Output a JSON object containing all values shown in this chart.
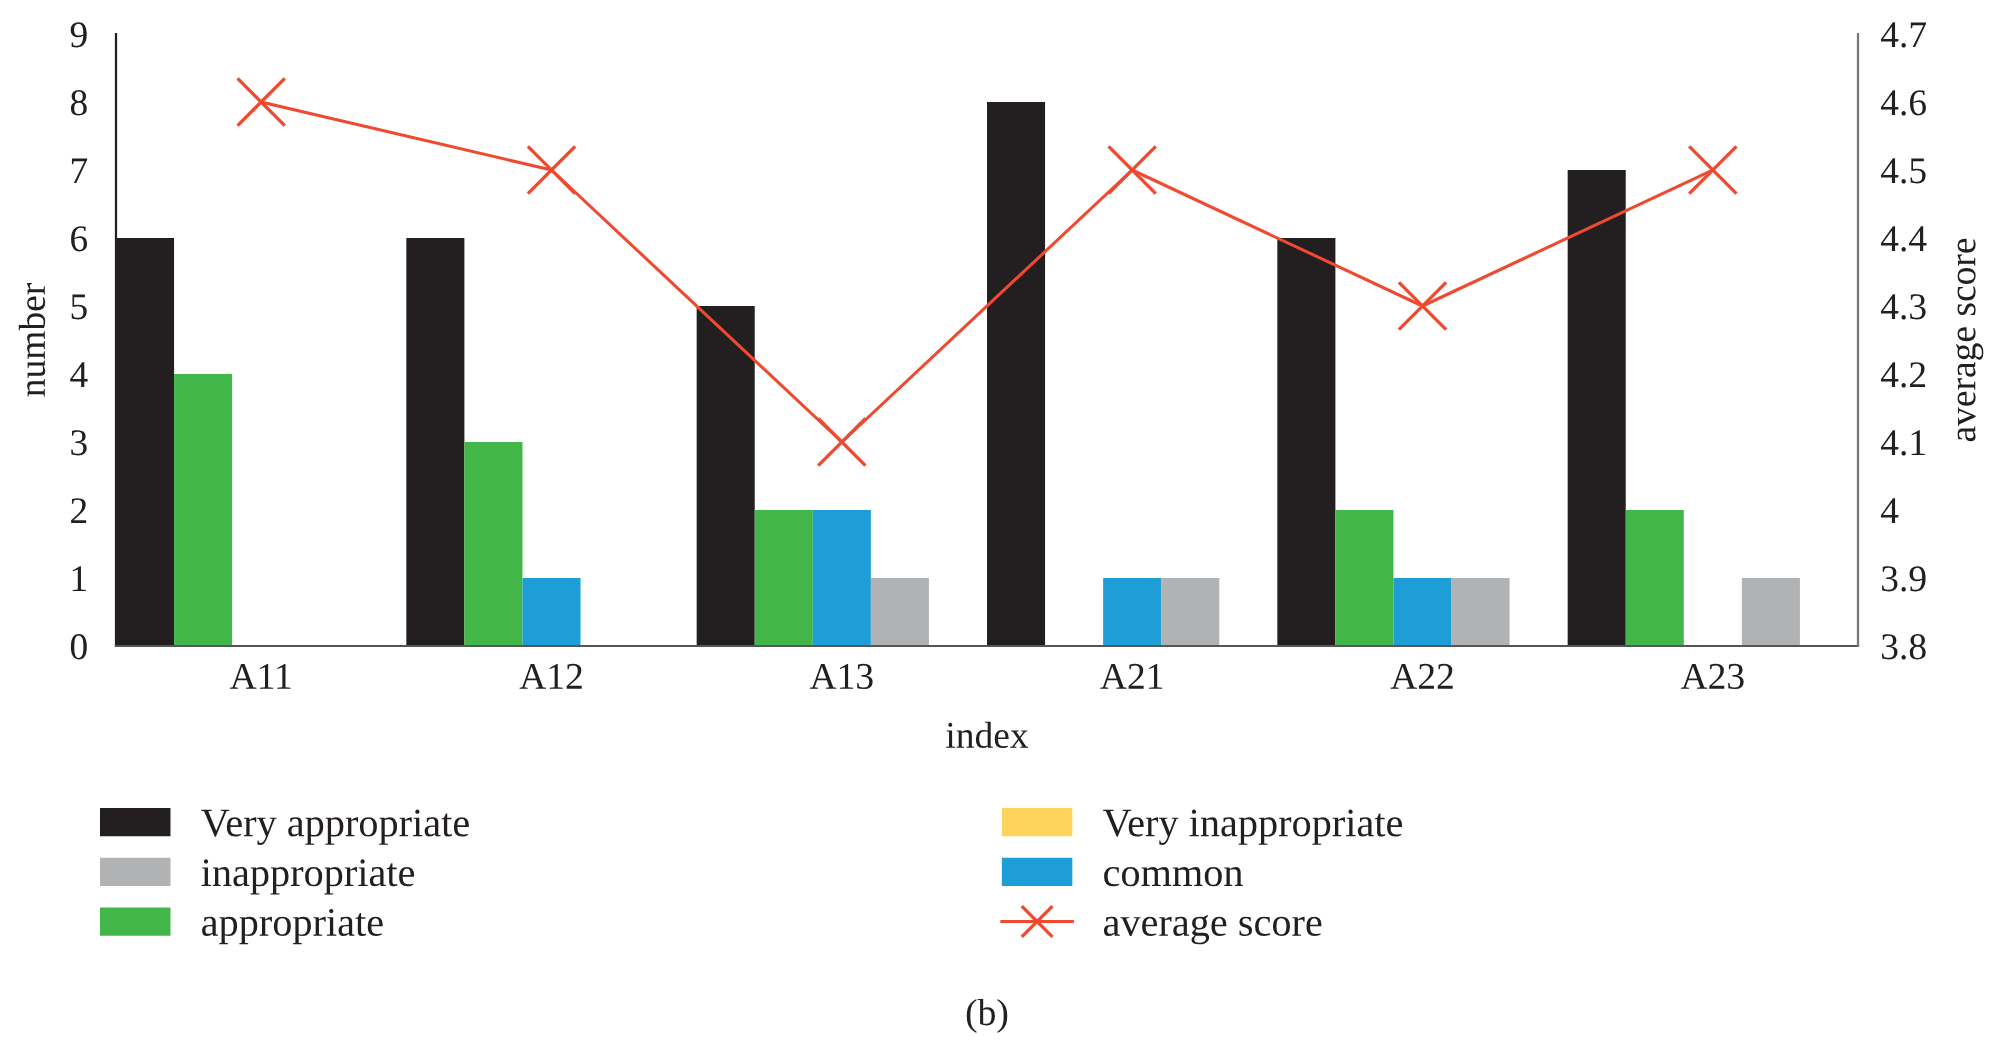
{
  "chart_data": {
    "type": "bar",
    "xlabel": "index",
    "ylabel": "number",
    "y2label": "average score",
    "categories": [
      "A11",
      "A12",
      "A13",
      "A21",
      "A22",
      "A23"
    ],
    "series": [
      {
        "name": "Very appropriate",
        "color": "#231f20",
        "values": [
          6,
          6,
          5,
          8,
          6,
          7
        ]
      },
      {
        "name": "appropriate",
        "color": "#43b649",
        "values": [
          4,
          3,
          2,
          0,
          2,
          2
        ]
      },
      {
        "name": "common",
        "color": "#1d9ed7",
        "values": [
          0,
          1,
          2,
          1,
          1,
          0
        ]
      },
      {
        "name": "inappropriate",
        "color": "#b1b2b4",
        "values": [
          0,
          0,
          1,
          1,
          1,
          1
        ]
      },
      {
        "name": "Very inappropriate",
        "color": "#fdd35b",
        "values": [
          0,
          0,
          0,
          0,
          0,
          0
        ]
      },
      {
        "name": "average score",
        "type": "line",
        "axis": "y2",
        "marker": "cross",
        "line_style": "solid",
        "color": "#ef4a30",
        "values": [
          4.6,
          4.5,
          4.1,
          4.5,
          4.3,
          4.5
        ]
      }
    ],
    "ylim": [
      0,
      9
    ],
    "yticks": [
      0,
      1,
      2,
      3,
      4,
      5,
      6,
      7,
      8,
      9
    ],
    "y2lim": [
      3.8,
      4.7
    ],
    "y2ticks": [
      3.8,
      3.9,
      4,
      4.1,
      4.2,
      4.3,
      4.4,
      4.5,
      4.6,
      4.7
    ],
    "legend": "bottom",
    "annotations": [
      "(b)"
    ]
  }
}
